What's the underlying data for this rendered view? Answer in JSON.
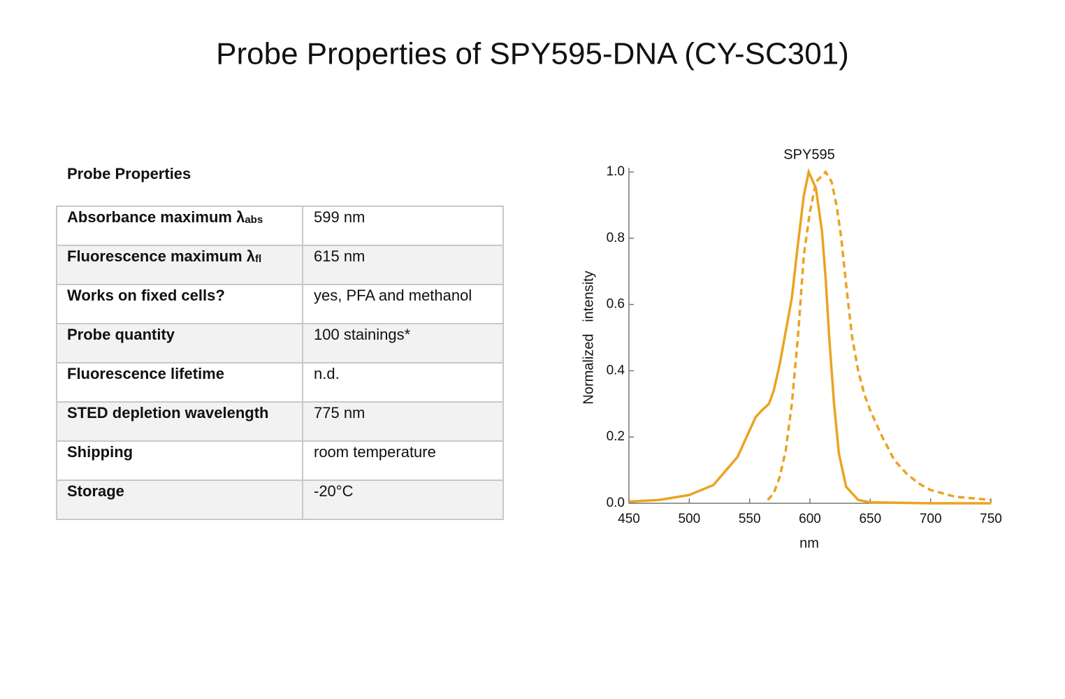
{
  "title": "Probe Properties of SPY595-DNA (CY-SC301)",
  "table": {
    "heading": "Probe Properties",
    "rows": [
      {
        "label": "Absorbance maximum λ",
        "sub": "abs",
        "value": "599 nm"
      },
      {
        "label": "Fluorescence maximum λ",
        "sub": "fl",
        "value": "615 nm"
      },
      {
        "label": "Works on fixed cells?",
        "value": "yes, PFA and methanol"
      },
      {
        "label": "Probe quantity",
        "value": "100 stainings*"
      },
      {
        "label": "Fluorescence lifetime",
        "value": "n.d."
      },
      {
        "label": "STED depletion wavelength",
        "value": "775 nm"
      },
      {
        "label": "Shipping",
        "value": "room temperature"
      },
      {
        "label": "Storage",
        "value": "-20°C"
      }
    ]
  },
  "chart_data": {
    "type": "line",
    "title": "SPY595",
    "xlabel": "nm",
    "ylabel": "Normalized   intensity",
    "xlim": [
      450,
      750
    ],
    "xticks": [
      450,
      500,
      550,
      600,
      650,
      700,
      750
    ],
    "ylim": [
      0,
      1
    ],
    "yticks": [
      {
        "value": 0,
        "label": "0.0"
      },
      0.2,
      0.4,
      0.6,
      0.8,
      {
        "value": 1,
        "label": "1.0"
      }
    ],
    "series": [
      {
        "color": "#eba321",
        "dashed": false,
        "x": [
          450,
          475,
          500,
          520,
          540,
          550,
          555,
          560,
          566,
          570,
          575,
          580,
          585,
          590,
          595,
          599,
          605,
          610,
          613,
          616,
          620,
          624,
          630,
          640,
          650,
          700,
          750
        ],
        "values": [
          0.005,
          0.01,
          0.025,
          0.055,
          0.14,
          0.22,
          0.26,
          0.28,
          0.3,
          0.34,
          0.42,
          0.52,
          0.62,
          0.78,
          0.93,
          1.0,
          0.95,
          0.82,
          0.68,
          0.5,
          0.3,
          0.15,
          0.05,
          0.01,
          0.003,
          0,
          0
        ]
      },
      {
        "color": "#eba321",
        "dashed": true,
        "x": [
          565,
          570,
          575,
          580,
          585,
          590,
          595,
          600,
          605,
          613,
          618,
          622,
          626,
          630,
          635,
          640,
          645,
          650,
          660,
          670,
          680,
          690,
          700,
          720,
          750
        ],
        "values": [
          0.01,
          0.03,
          0.08,
          0.16,
          0.3,
          0.5,
          0.75,
          0.88,
          0.97,
          1.0,
          0.97,
          0.9,
          0.8,
          0.66,
          0.5,
          0.4,
          0.33,
          0.28,
          0.2,
          0.13,
          0.09,
          0.06,
          0.04,
          0.02,
          0.01
        ]
      }
    ]
  }
}
